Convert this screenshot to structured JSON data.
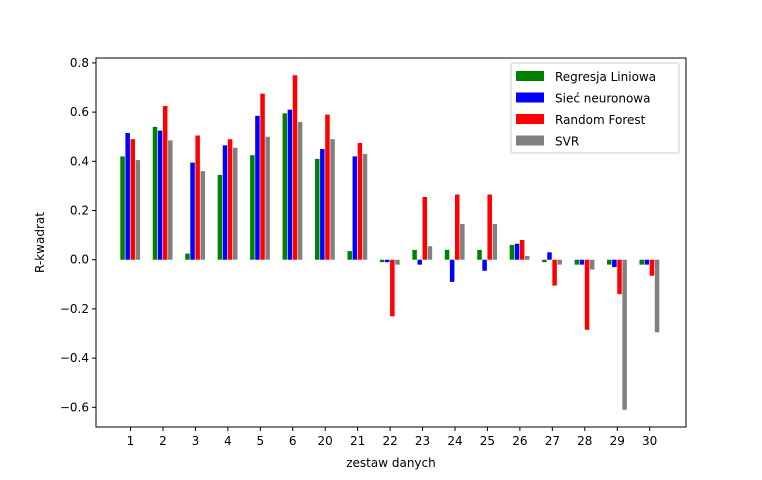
{
  "chart_data": {
    "type": "bar",
    "title": "",
    "xlabel": "zestaw danych",
    "ylabel": "R-kwadrat",
    "categories": [
      "1",
      "2",
      "3",
      "4",
      "5",
      "6",
      "20",
      "21",
      "22",
      "23",
      "24",
      "25",
      "26",
      "27",
      "28",
      "29",
      "30"
    ],
    "ylim": [
      -0.68,
      0.82
    ],
    "yticks": [
      -0.6,
      -0.4,
      -0.2,
      0.0,
      0.2,
      0.4,
      0.6,
      0.8
    ],
    "ytick_labels": [
      "−0.6",
      "−0.4",
      "−0.2",
      "0.0",
      "0.2",
      "0.4",
      "0.6",
      "0.8"
    ],
    "grid": false,
    "legend_position": "top-right",
    "series": [
      {
        "name": "Regresja Liniowa",
        "color": "#008000",
        "values": [
          0.42,
          0.54,
          0.025,
          0.345,
          0.425,
          0.595,
          0.41,
          0.035,
          -0.01,
          0.04,
          0.04,
          0.04,
          0.06,
          -0.01,
          -0.02,
          -0.02,
          -0.02
        ]
      },
      {
        "name": "Sieć neuronowa",
        "color": "#0000ff",
        "values": [
          0.515,
          0.525,
          0.395,
          0.465,
          0.585,
          0.61,
          0.45,
          0.42,
          -0.01,
          -0.02,
          -0.09,
          -0.045,
          0.065,
          0.03,
          -0.02,
          -0.03,
          -0.02
        ]
      },
      {
        "name": "Random Forest",
        "color": "#ff0000",
        "values": [
          0.49,
          0.625,
          0.505,
          0.49,
          0.675,
          0.75,
          0.59,
          0.475,
          -0.23,
          0.255,
          0.265,
          0.265,
          0.08,
          -0.105,
          -0.285,
          -0.14,
          -0.065
        ]
      },
      {
        "name": "SVR",
        "color": "#808080",
        "values": [
          0.405,
          0.485,
          0.36,
          0.455,
          0.5,
          0.56,
          0.49,
          0.43,
          -0.02,
          0.055,
          0.145,
          0.145,
          0.015,
          -0.02,
          -0.04,
          -0.61,
          -0.295
        ]
      }
    ]
  }
}
